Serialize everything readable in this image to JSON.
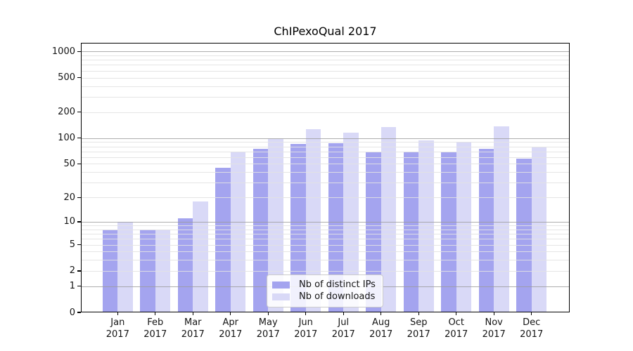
{
  "chart_data": {
    "type": "bar",
    "title": "ChIPexoQual 2017",
    "year_label": "2017",
    "months": [
      "Jan",
      "Feb",
      "Mar",
      "Apr",
      "May",
      "Jun",
      "Jul",
      "Aug",
      "Sep",
      "Oct",
      "Nov",
      "Dec"
    ],
    "series": [
      {
        "name": "Nb of distinct IPs",
        "color": "#a4a4ef",
        "values": [
          8,
          8,
          11,
          45,
          75,
          85,
          88,
          68,
          69,
          68,
          75,
          58
        ]
      },
      {
        "name": "Nb of downloads",
        "color": "#d9d9f7",
        "values": [
          10,
          8,
          18,
          69,
          98,
          126,
          115,
          135,
          94,
          91,
          138,
          78
        ]
      }
    ],
    "yscale": "log1p",
    "ylim": [
      0,
      1257
    ],
    "yticks": [
      0,
      1,
      2,
      5,
      10,
      20,
      50,
      100,
      200,
      500,
      1000
    ],
    "major_gridlines": [
      1,
      10,
      100,
      1000
    ],
    "minor_gridlines": [
      2,
      3,
      4,
      5,
      6,
      7,
      8,
      9,
      20,
      30,
      40,
      50,
      60,
      70,
      80,
      90,
      200,
      300,
      400,
      500,
      600,
      700,
      800,
      900
    ],
    "grid": true,
    "legend_position": "lower center",
    "colors": {
      "grid_major": "#9a9a9a",
      "grid_minor": "#e2e2e2",
      "axis": "#000000",
      "text": "#141414",
      "background": "#ffffff"
    }
  }
}
